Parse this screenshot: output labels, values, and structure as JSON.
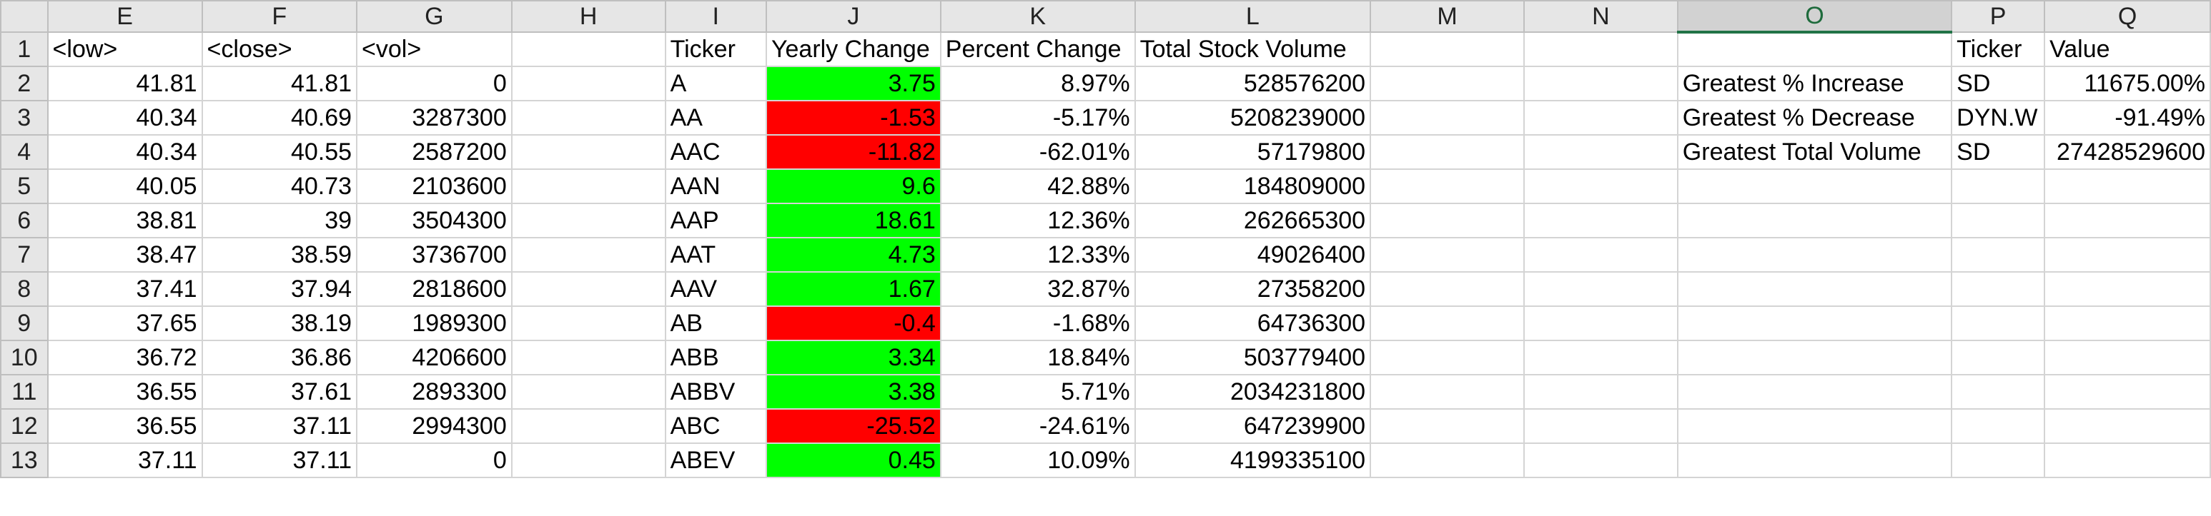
{
  "columns": [
    "E",
    "F",
    "G",
    "H",
    "I",
    "J",
    "K",
    "L",
    "M",
    "N",
    "O",
    "P",
    "Q"
  ],
  "header_row": {
    "low": "<low>",
    "close": "<close>",
    "vol": "<vol>",
    "ticker": "Ticker",
    "yearly_change": "Yearly Change",
    "percent_change": "Percent Change",
    "total_volume": "Total Stock Volume",
    "summary_ticker": "Ticker",
    "summary_value": "Value"
  },
  "rows": [
    {
      "n": "2",
      "low": "41.81",
      "close": "41.81",
      "vol": "0",
      "ticker": "A",
      "yc": "3.75",
      "pc": "8.97%",
      "tv": "528576200",
      "pos": true
    },
    {
      "n": "3",
      "low": "40.34",
      "close": "40.69",
      "vol": "3287300",
      "ticker": "AA",
      "yc": "-1.53",
      "pc": "-5.17%",
      "tv": "5208239000",
      "pos": false
    },
    {
      "n": "4",
      "low": "40.34",
      "close": "40.55",
      "vol": "2587200",
      "ticker": "AAC",
      "yc": "-11.82",
      "pc": "-62.01%",
      "tv": "57179800",
      "pos": false
    },
    {
      "n": "5",
      "low": "40.05",
      "close": "40.73",
      "vol": "2103600",
      "ticker": "AAN",
      "yc": "9.6",
      "pc": "42.88%",
      "tv": "184809000",
      "pos": true
    },
    {
      "n": "6",
      "low": "38.81",
      "close": "39",
      "vol": "3504300",
      "ticker": "AAP",
      "yc": "18.61",
      "pc": "12.36%",
      "tv": "262665300",
      "pos": true
    },
    {
      "n": "7",
      "low": "38.47",
      "close": "38.59",
      "vol": "3736700",
      "ticker": "AAT",
      "yc": "4.73",
      "pc": "12.33%",
      "tv": "49026400",
      "pos": true
    },
    {
      "n": "8",
      "low": "37.41",
      "close": "37.94",
      "vol": "2818600",
      "ticker": "AAV",
      "yc": "1.67",
      "pc": "32.87%",
      "tv": "27358200",
      "pos": true
    },
    {
      "n": "9",
      "low": "37.65",
      "close": "38.19",
      "vol": "1989300",
      "ticker": "AB",
      "yc": "-0.4",
      "pc": "-1.68%",
      "tv": "64736300",
      "pos": false
    },
    {
      "n": "10",
      "low": "36.72",
      "close": "36.86",
      "vol": "4206600",
      "ticker": "ABB",
      "yc": "3.34",
      "pc": "18.84%",
      "tv": "503779400",
      "pos": true
    },
    {
      "n": "11",
      "low": "36.55",
      "close": "37.61",
      "vol": "2893300",
      "ticker": "ABBV",
      "yc": "3.38",
      "pc": "5.71%",
      "tv": "2034231800",
      "pos": true
    },
    {
      "n": "12",
      "low": "36.55",
      "close": "37.11",
      "vol": "2994300",
      "ticker": "ABC",
      "yc": "-25.52",
      "pc": "-24.61%",
      "tv": "647239900",
      "pos": false
    },
    {
      "n": "13",
      "low": "37.11",
      "close": "37.11",
      "vol": "0",
      "ticker": "ABEV",
      "yc": "0.45",
      "pc": "10.09%",
      "tv": "4199335100",
      "pos": true
    }
  ],
  "summary": [
    {
      "label": "Greatest % Increase",
      "ticker": "SD",
      "value": "11675.00%"
    },
    {
      "label": "Greatest % Decrease",
      "ticker": "DYN.W",
      "value": "-91.49%"
    },
    {
      "label": "Greatest Total Volume",
      "ticker": "SD",
      "value": "27428529600"
    }
  ],
  "colors": {
    "positive": "#00ff00",
    "negative": "#ff0000",
    "selected_header": "#217346"
  }
}
